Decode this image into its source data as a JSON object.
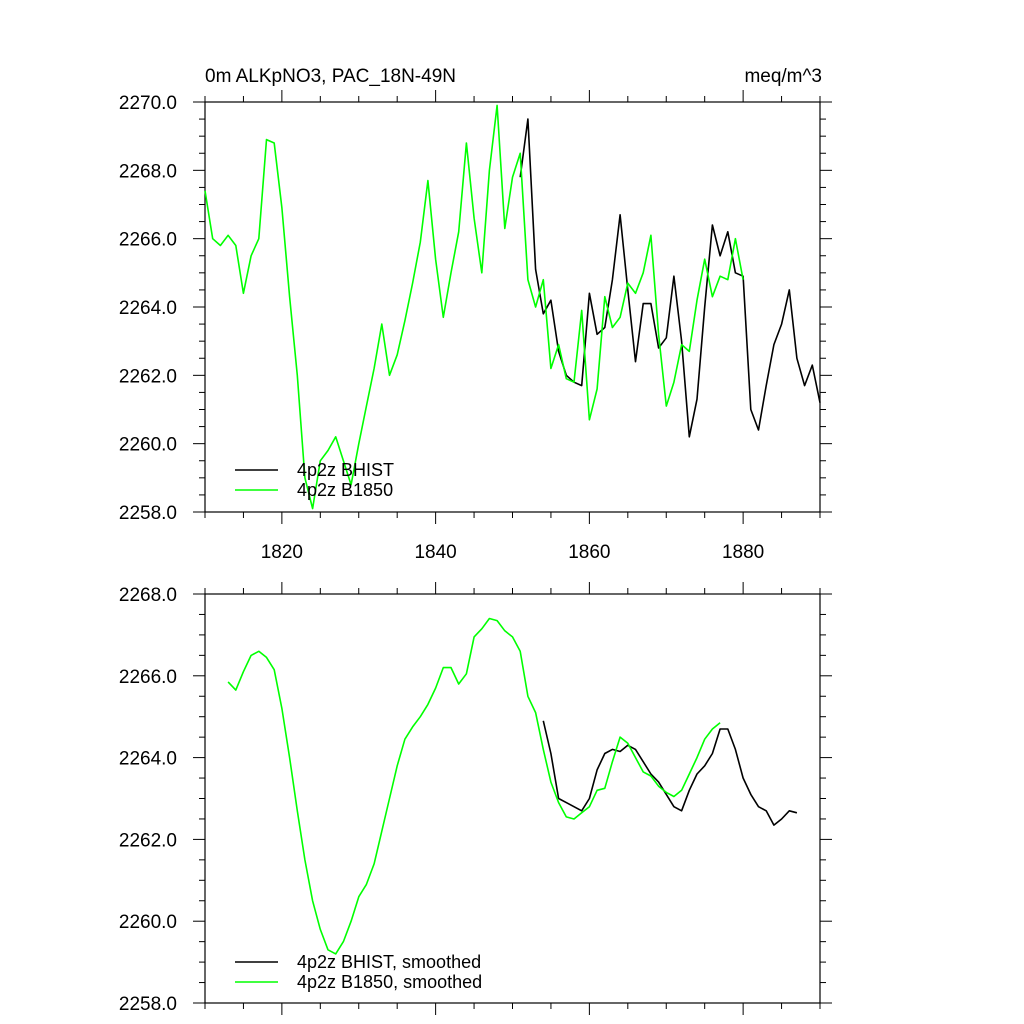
{
  "chart_data": [
    {
      "type": "line",
      "title": "0m ALKpNO3, PAC_18N-49N",
      "units_label": "meq/m^3",
      "xlim": [
        1810,
        1890
      ],
      "ylim": [
        2258.0,
        2270.0
      ],
      "yticks": [
        2258.0,
        2260.0,
        2262.0,
        2264.0,
        2266.0,
        2268.0,
        2270.0
      ],
      "ytick_labels": [
        "2258.0",
        "2260.0",
        "2262.0",
        "2264.0",
        "2266.0",
        "2268.0",
        "2270.0"
      ],
      "xticks": [
        1820,
        1840,
        1860,
        1880
      ],
      "xtick_labels": [
        "1820",
        "1840",
        "1860",
        "1880"
      ],
      "legend_position": "bottom-left",
      "series": [
        {
          "name": "4p2z BHIST",
          "color": "#000000",
          "x": [
            1851,
            1852,
            1853,
            1854,
            1855,
            1856,
            1857,
            1858,
            1859,
            1860,
            1861,
            1862,
            1863,
            1864,
            1865,
            1866,
            1867,
            1868,
            1869,
            1870,
            1871,
            1872,
            1873,
            1874,
            1875,
            1876,
            1877,
            1878,
            1879,
            1880,
            1881,
            1882,
            1883,
            1884,
            1885,
            1886,
            1887,
            1888,
            1889,
            1890
          ],
          "y": [
            2267.8,
            2269.5,
            2265.1,
            2263.8,
            2264.2,
            2262.7,
            2262.0,
            2261.8,
            2261.7,
            2264.4,
            2263.2,
            2263.4,
            2264.8,
            2266.7,
            2264.5,
            2262.4,
            2264.1,
            2264.1,
            2262.8,
            2263.1,
            2264.9,
            2263.0,
            2260.2,
            2261.3,
            2264.0,
            2266.4,
            2265.5,
            2266.2,
            2265.0,
            2264.9,
            2261.0,
            2260.4,
            2261.7,
            2262.9,
            2263.5,
            2264.5,
            2262.5,
            2261.7,
            2262.3,
            2261.2
          ]
        },
        {
          "name": "4p2z B1850",
          "color": "#00ff00",
          "x": [
            1810,
            1811,
            1812,
            1813,
            1814,
            1815,
            1816,
            1817,
            1818,
            1819,
            1820,
            1821,
            1822,
            1823,
            1824,
            1825,
            1826,
            1827,
            1828,
            1829,
            1830,
            1831,
            1832,
            1833,
            1834,
            1835,
            1836,
            1837,
            1838,
            1839,
            1840,
            1841,
            1842,
            1843,
            1844,
            1845,
            1846,
            1847,
            1848,
            1849,
            1850,
            1851,
            1852,
            1853,
            1854,
            1855,
            1856,
            1857,
            1858,
            1859,
            1860,
            1861,
            1862,
            1863,
            1864,
            1865,
            1866,
            1867,
            1868,
            1869,
            1870,
            1871,
            1872,
            1873,
            1874,
            1875,
            1876,
            1877,
            1878,
            1879,
            1880
          ],
          "y": [
            2267.4,
            2266.0,
            2265.8,
            2266.1,
            2265.8,
            2264.4,
            2265.5,
            2266.0,
            2268.9,
            2268.8,
            2266.9,
            2264.3,
            2262.0,
            2259.0,
            2258.1,
            2259.5,
            2259.8,
            2260.2,
            2259.5,
            2258.8,
            2260.0,
            2261.1,
            2262.2,
            2263.5,
            2262.0,
            2262.6,
            2263.6,
            2264.7,
            2265.9,
            2267.7,
            2265.4,
            2263.7,
            2265.0,
            2266.2,
            2268.8,
            2266.6,
            2265.0,
            2268.0,
            2269.9,
            2266.3,
            2267.8,
            2268.5,
            2264.8,
            2264.0,
            2264.8,
            2262.2,
            2262.9,
            2261.9,
            2261.8,
            2263.9,
            2260.7,
            2261.6,
            2264.3,
            2263.4,
            2263.7,
            2264.7,
            2264.4,
            2265.0,
            2266.1,
            2263.2,
            2261.1,
            2261.8,
            2262.9,
            2262.7,
            2264.2,
            2265.4,
            2264.3,
            2264.9,
            2264.8,
            2266.0,
            2264.8
          ]
        }
      ]
    },
    {
      "type": "line",
      "xlim": [
        1810,
        1890
      ],
      "ylim": [
        2258.0,
        2268.0
      ],
      "yticks": [
        2258.0,
        2260.0,
        2262.0,
        2264.0,
        2266.0,
        2268.0
      ],
      "ytick_labels": [
        "2258.0",
        "2260.0",
        "2262.0",
        "2264.0",
        "2266.0",
        "2268.0"
      ],
      "xticks": [
        1820,
        1840,
        1860,
        1880
      ],
      "legend_position": "bottom-left",
      "series": [
        {
          "name": "4p2z BHIST, smoothed",
          "color": "#000000",
          "x": [
            1854,
            1855,
            1856,
            1857,
            1858,
            1859,
            1860,
            1861,
            1862,
            1863,
            1864,
            1865,
            1866,
            1867,
            1868,
            1869,
            1870,
            1871,
            1872,
            1873,
            1874,
            1875,
            1876,
            1877,
            1878,
            1879,
            1880,
            1881,
            1882,
            1883,
            1884,
            1885,
            1886,
            1887
          ],
          "y": [
            2264.9,
            2264.1,
            2263.0,
            2262.9,
            2262.8,
            2262.7,
            2263.0,
            2263.7,
            2264.1,
            2264.2,
            2264.15,
            2264.3,
            2264.2,
            2263.9,
            2263.6,
            2263.4,
            2263.1,
            2262.8,
            2262.7,
            2263.2,
            2263.6,
            2263.8,
            2264.1,
            2264.7,
            2264.7,
            2264.2,
            2263.5,
            2263.1,
            2262.8,
            2262.7,
            2262.35,
            2262.5,
            2262.7,
            2262.65
          ]
        },
        {
          "name": "4p2z B1850, smoothed",
          "color": "#00ff00",
          "x": [
            1813,
            1814,
            1815,
            1816,
            1817,
            1818,
            1819,
            1820,
            1821,
            1822,
            1823,
            1824,
            1825,
            1826,
            1827,
            1828,
            1829,
            1830,
            1831,
            1832,
            1833,
            1834,
            1835,
            1836,
            1837,
            1838,
            1839,
            1840,
            1841,
            1842,
            1843,
            1844,
            1845,
            1846,
            1847,
            1848,
            1849,
            1850,
            1851,
            1852,
            1853,
            1854,
            1855,
            1856,
            1857,
            1858,
            1859,
            1860,
            1861,
            1862,
            1863,
            1864,
            1865,
            1866,
            1867,
            1868,
            1869,
            1870,
            1871,
            1872,
            1873,
            1874,
            1875,
            1876,
            1877
          ],
          "y": [
            2265.85,
            2265.65,
            2266.1,
            2266.5,
            2266.6,
            2266.45,
            2266.15,
            2265.2,
            2264.0,
            2262.7,
            2261.5,
            2260.5,
            2259.8,
            2259.3,
            2259.2,
            2259.5,
            2260.0,
            2260.6,
            2260.9,
            2261.4,
            2262.2,
            2263.0,
            2263.8,
            2264.45,
            2264.75,
            2265.0,
            2265.3,
            2265.7,
            2266.2,
            2266.2,
            2265.8,
            2266.05,
            2266.95,
            2267.15,
            2267.4,
            2267.35,
            2267.1,
            2266.95,
            2266.6,
            2265.5,
            2265.1,
            2264.2,
            2263.4,
            2262.9,
            2262.55,
            2262.5,
            2262.65,
            2262.8,
            2263.2,
            2263.25,
            2263.9,
            2264.5,
            2264.35,
            2264.0,
            2263.65,
            2263.55,
            2263.3,
            2263.15,
            2263.05,
            2263.2,
            2263.6,
            2264.0,
            2264.45,
            2264.7,
            2264.85
          ]
        }
      ]
    }
  ]
}
